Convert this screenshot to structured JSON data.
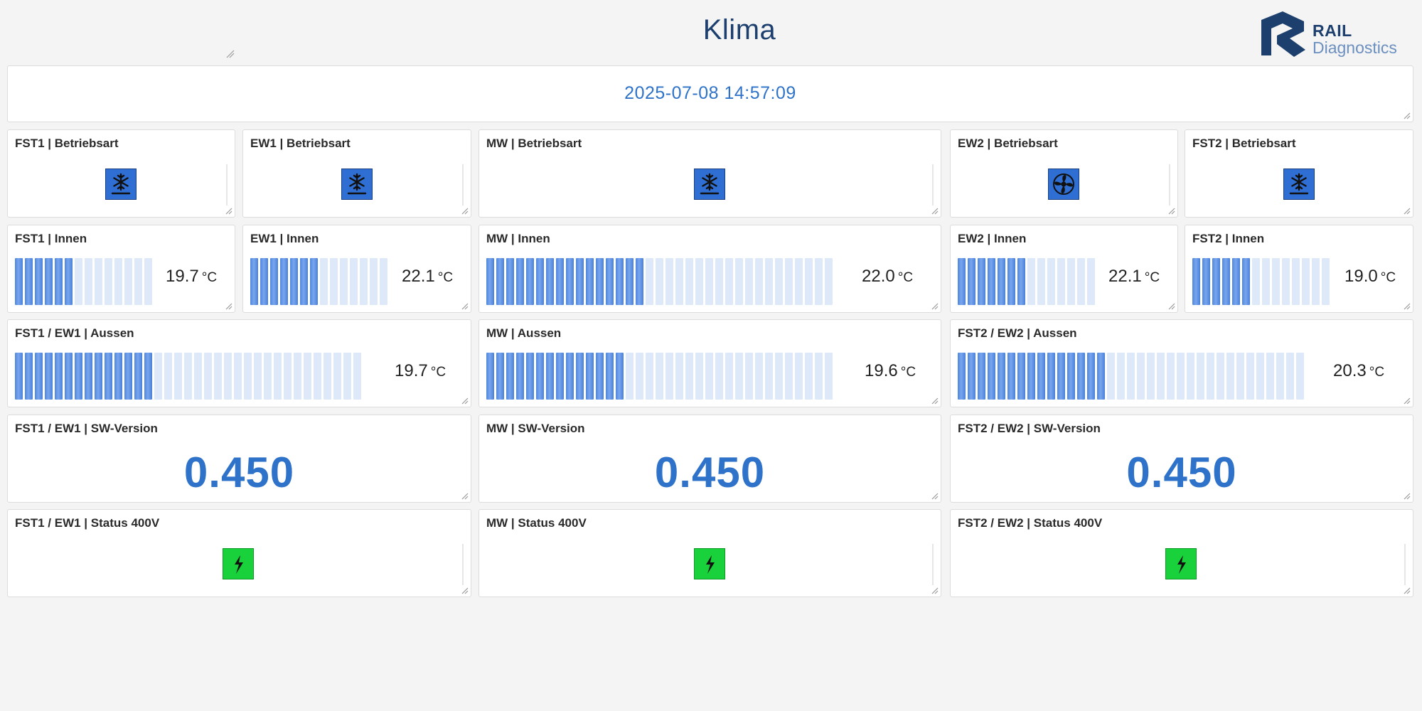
{
  "page": {
    "title": "Klima"
  },
  "logo": {
    "line1": "RAIL",
    "line2": "Diagnostics"
  },
  "timestamp": "2025-07-08 14:57:09",
  "betriebsart": [
    {
      "title": "FST1 | Betriebsart",
      "icon": "snowflake-icon"
    },
    {
      "title": "EW1 | Betriebsart",
      "icon": "snowflake-icon"
    },
    {
      "title": "MW | Betriebsart",
      "icon": "snowflake-icon"
    },
    {
      "title": "EW2 | Betriebsart",
      "icon": "fan-icon"
    },
    {
      "title": "FST2 | Betriebsart",
      "icon": "snowflake-icon"
    }
  ],
  "innen": [
    {
      "title": "FST1 | Innen",
      "value": "19.7",
      "unit": "°C",
      "fill": 0.4
    },
    {
      "title": "EW1 | Innen",
      "value": "22.1",
      "unit": "°C",
      "fill": 0.47
    },
    {
      "title": "MW | Innen",
      "value": "22.0",
      "unit": "°C",
      "fill": 0.45
    },
    {
      "title": "EW2 | Innen",
      "value": "22.1",
      "unit": "°C",
      "fill": 0.47
    },
    {
      "title": "FST2 | Innen",
      "value": "19.0",
      "unit": "°C",
      "fill": 0.4
    }
  ],
  "aussen": [
    {
      "title": "FST1 / EW1 | Aussen",
      "value": "19.7",
      "unit": "°C",
      "fill": 0.4
    },
    {
      "title": "MW | Aussen",
      "value": "19.6",
      "unit": "°C",
      "fill": 0.4
    },
    {
      "title": "FST2 / EW2 | Aussen",
      "value": "20.3",
      "unit": "°C",
      "fill": 0.42
    }
  ],
  "sw_version": [
    {
      "title": "FST1 / EW1 | SW-Version",
      "value": "0.450"
    },
    {
      "title": "MW | SW-Version",
      "value": "0.450"
    },
    {
      "title": "FST2 / EW2 | SW-Version",
      "value": "0.450"
    }
  ],
  "status_400v": [
    {
      "title": "FST1 / EW1 | Status 400V",
      "icon": "lightning-icon"
    },
    {
      "title": "MW | Status 400V",
      "icon": "lightning-icon"
    },
    {
      "title": "FST2 / EW2 | Status 400V",
      "icon": "lightning-icon"
    }
  ],
  "colors": {
    "accent": "#2e73c9",
    "gauge_on": "#4f86de",
    "gauge_off": "#dde8f8",
    "status_ok": "#19d13a",
    "mode_bg": "#2f6fd4"
  }
}
